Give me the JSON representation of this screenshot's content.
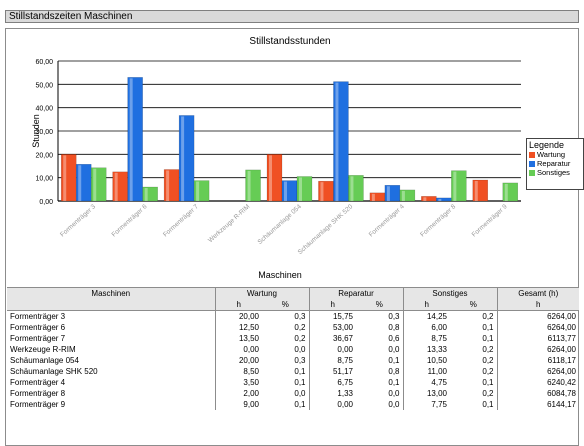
{
  "panel": {
    "title": "Stillstandszeiten Maschinen"
  },
  "colors": {
    "wartung": "#f05023",
    "reparatur": "#1f6fe0",
    "sonstiges": "#66cc55"
  },
  "chart_data": {
    "type": "bar",
    "title": "Stillstandsstunden",
    "xlabel": "Maschinen",
    "ylabel": "Stunden",
    "ylim": [
      0,
      60
    ],
    "yticks": [
      "0,00",
      "10,00",
      "20,00",
      "30,00",
      "40,00",
      "50,00",
      "60,00"
    ],
    "grid": true,
    "legend_position": "right",
    "categories": [
      "Formenträger 3",
      "Formenträger 6",
      "Formenträger 7",
      "Werkzeuge R-RIM",
      "Schäumanlage 054",
      "Schäumanlage SHK 520",
      "Formenträger 4",
      "Formenträger 8",
      "Formenträger 9"
    ],
    "series": [
      {
        "name": "Wartung",
        "values": [
          20.0,
          12.5,
          13.5,
          0.0,
          20.0,
          8.5,
          3.5,
          2.0,
          9.0
        ]
      },
      {
        "name": "Reparatur",
        "values": [
          15.75,
          53.0,
          36.67,
          0.0,
          8.75,
          51.17,
          6.75,
          1.33,
          0.0
        ]
      },
      {
        "name": "Sonstiges",
        "values": [
          14.25,
          6.0,
          8.75,
          13.33,
          10.5,
          11.0,
          4.75,
          13.0,
          7.75
        ]
      }
    ]
  },
  "legend": {
    "title": "Legende",
    "items": [
      "Wartung",
      "Reparatur",
      "Sonstiges"
    ]
  },
  "table": {
    "header_name": "Maschinen",
    "groups": [
      "Wartung",
      "Reparatur",
      "Sonstiges",
      "Gesamt (h)"
    ],
    "subheaders": [
      "h",
      "%",
      "h",
      "%",
      "h",
      "%",
      "h"
    ],
    "rows": [
      [
        "Formenträger 3",
        "20,00",
        "0,3",
        "15,75",
        "0,3",
        "14,25",
        "0,2",
        "6264,00"
      ],
      [
        "Formenträger 6",
        "12,50",
        "0,2",
        "53,00",
        "0,8",
        "6,00",
        "0,1",
        "6264,00"
      ],
      [
        "Formenträger 7",
        "13,50",
        "0,2",
        "36,67",
        "0,6",
        "8,75",
        "0,1",
        "6113,77"
      ],
      [
        "Werkzeuge R-RIM",
        "0,00",
        "0,0",
        "0,00",
        "0,0",
        "13,33",
        "0,2",
        "6264,00"
      ],
      [
        "Schäumanlage 054",
        "20,00",
        "0,3",
        "8,75",
        "0,1",
        "10,50",
        "0,2",
        "6118,17"
      ],
      [
        "Schäumanlage SHK 520",
        "8,50",
        "0,1",
        "51,17",
        "0,8",
        "11,00",
        "0,2",
        "6264,00"
      ],
      [
        "Formenträger 4",
        "3,50",
        "0,1",
        "6,75",
        "0,1",
        "4,75",
        "0,1",
        "6240,42"
      ],
      [
        "Formenträger 8",
        "2,00",
        "0,0",
        "1,33",
        "0,0",
        "13,00",
        "0,2",
        "6084,78"
      ],
      [
        "Formenträger 9",
        "9,00",
        "0,1",
        "0,00",
        "0,0",
        "7,75",
        "0,1",
        "6144,17"
      ]
    ]
  }
}
